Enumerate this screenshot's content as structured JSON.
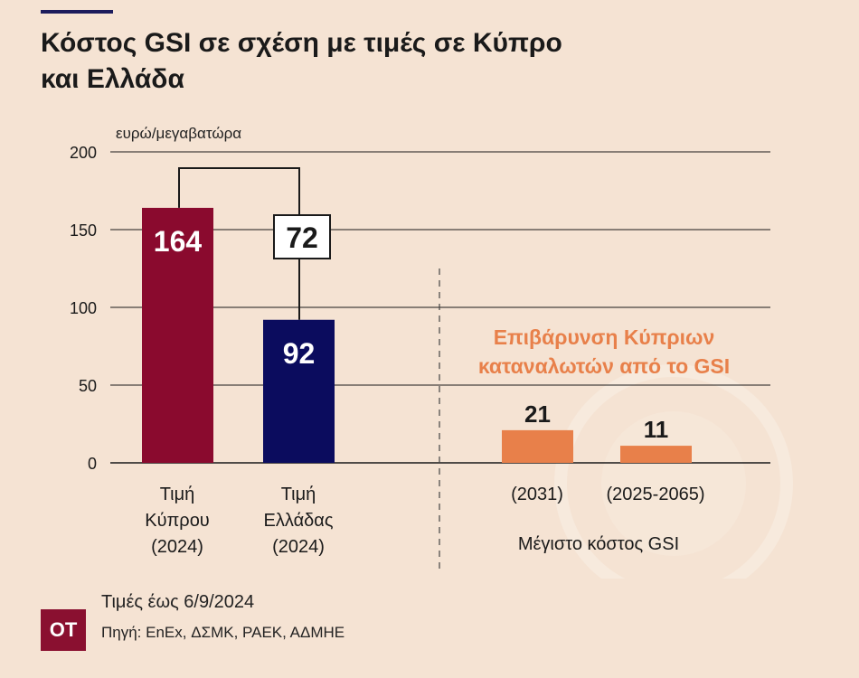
{
  "title_line1": "Κόστος GSI σε σχέση με τιμές σε Κύπρο",
  "title_line2": "και Ελλάδα",
  "footer": {
    "date": "Τιμές έως 6/9/2024",
    "source": "Πηγή: EnEx, ΔΣΜΚ, ΡΑΕΚ, ΑΔΜΗΕ",
    "logo": "OT"
  },
  "colors": {
    "background": "#f5e3d3",
    "cyprus": "#8a0a2e",
    "greece": "#0b0c5e",
    "gsi": "#e8804a",
    "annotation": "#e8804a"
  },
  "chart_data": {
    "type": "bar",
    "ylabel": "ευρώ/μεγαβατώρα",
    "ylim": [
      0,
      200
    ],
    "yticks": [
      0,
      50,
      100,
      150,
      200
    ],
    "grid": true,
    "bars": [
      {
        "label": [
          "Τιμή",
          "Κύπρου",
          "(2024)"
        ],
        "value": 164,
        "value_label": "164",
        "color": "#8a0a2e"
      },
      {
        "label": [
          "Τιμή",
          "Ελλάδας",
          "(2024)"
        ],
        "value": 92,
        "value_label": "92",
        "color": "#0b0c5e"
      },
      {
        "label": [
          "(2031)"
        ],
        "value": 21,
        "value_label": "21",
        "color": "#e8804a"
      },
      {
        "label": [
          "(2025-2065)"
        ],
        "value": 11,
        "value_label": "11",
        "color": "#e8804a"
      }
    ],
    "difference_label": "72",
    "group_label": "Μέγιστο κόστος GSI",
    "annotation": [
      "Επιβάρυνση Κύπριων",
      "καταναλωτών από το GSI"
    ]
  }
}
